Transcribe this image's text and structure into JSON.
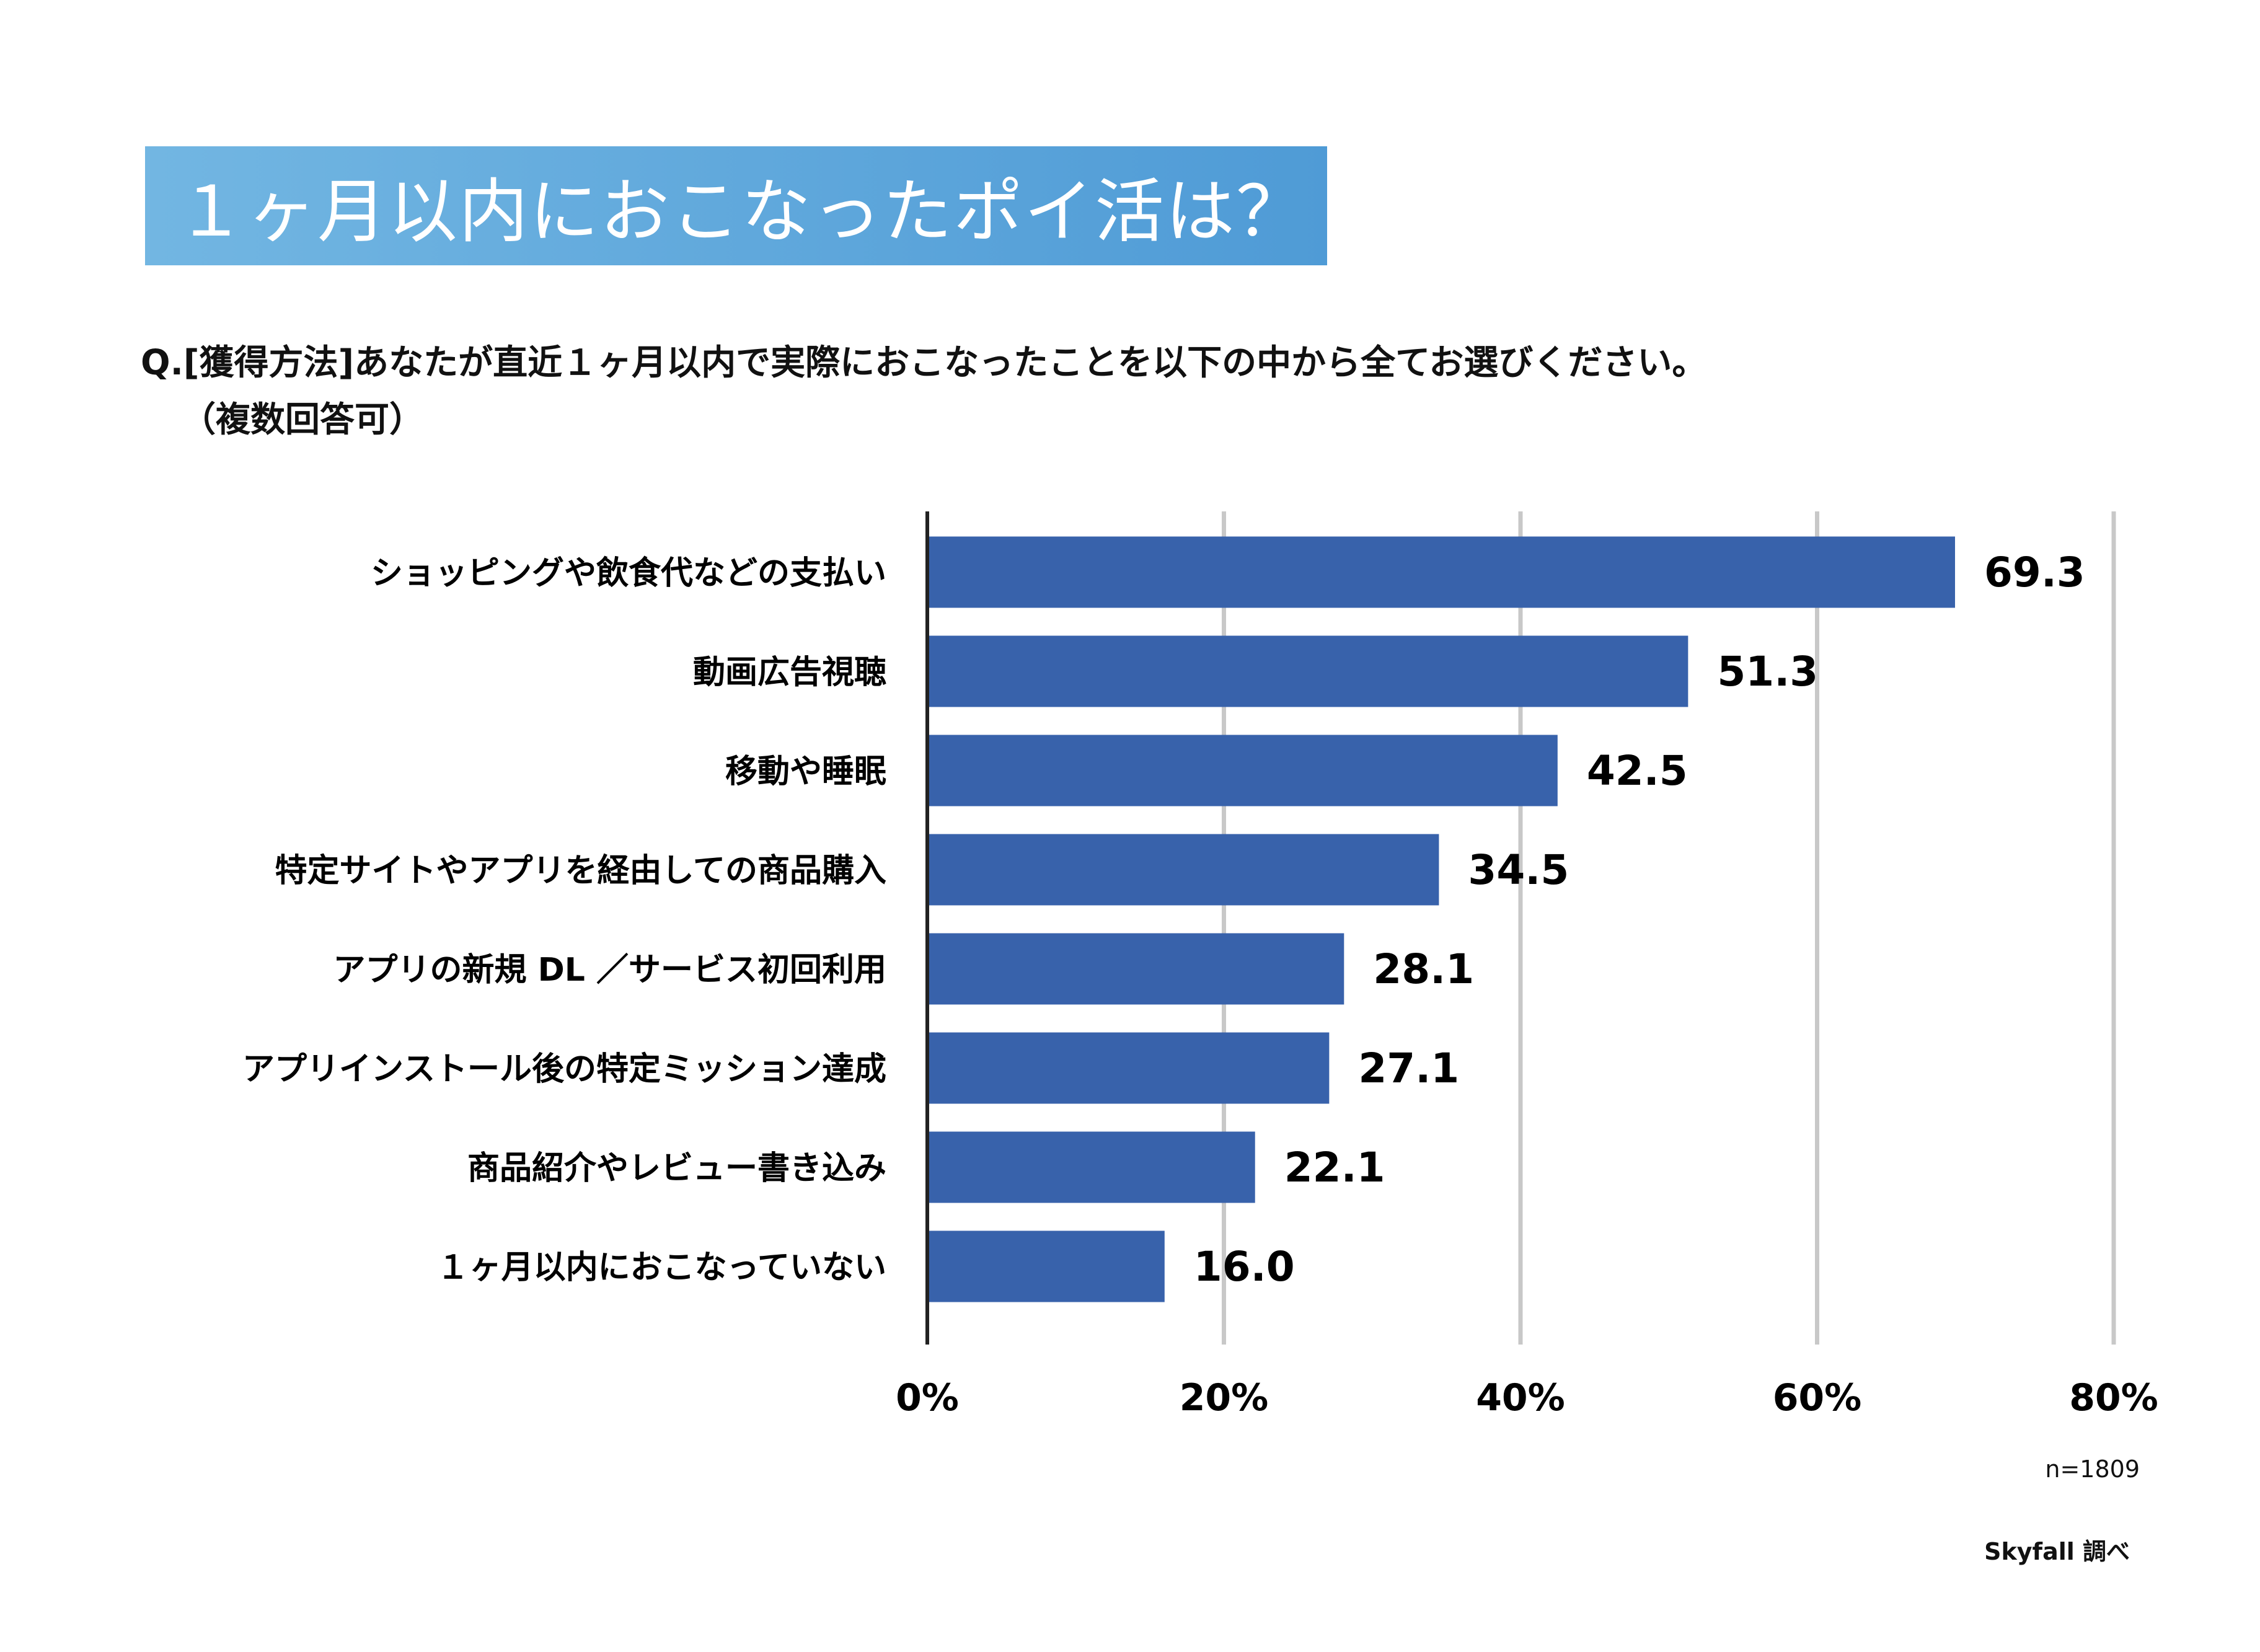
{
  "title": "１ヶ月以内におこなったポイ活は？",
  "question": {
    "line1": "Q.[獲得方法]あなたが直近１ヶ月以内で実際におこなったことを以下の中から全てお選びください。",
    "line2": "（複数回答可）"
  },
  "sample_size": "n=1809",
  "source": "Skyfall 調べ",
  "colors": {
    "bar": "#3862ab",
    "title_bg": "#5ea6db",
    "grid": "#c8c8c8"
  },
  "chart_data": {
    "type": "bar",
    "orientation": "horizontal",
    "categories": [
      "ショッピングや飲食代などの支払い",
      "動画広告視聴",
      "移動や睡眠",
      "特定サイトやアプリを経由しての商品購入",
      "アプリの新規 DL ／サービス初回利用",
      "アプリインストール後の特定ミッション達成",
      "商品紹介やレビュー書き込み",
      "１ヶ月以内におこなっていない"
    ],
    "values": [
      69.3,
      51.3,
      42.5,
      34.5,
      28.1,
      27.1,
      22.1,
      16.0
    ],
    "value_labels": [
      "69.3",
      "51.3",
      "42.5",
      "34.5",
      "28.1",
      "27.1",
      "22.1",
      "16.0"
    ],
    "xlim": [
      0,
      80
    ],
    "xticks": [
      0,
      20,
      40,
      60,
      80
    ],
    "xtick_labels": [
      "0%",
      "20%",
      "40%",
      "60%",
      "80%"
    ],
    "grid": true
  }
}
